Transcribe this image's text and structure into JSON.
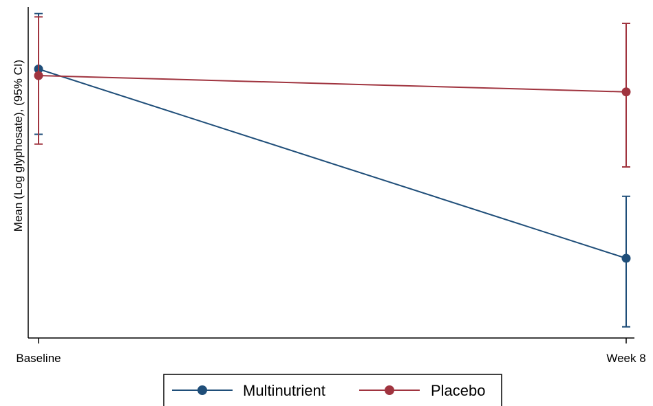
{
  "chart_data": {
    "type": "line",
    "title": "",
    "xlabel": "",
    "ylabel": "Mean (Log glyphosate), (95% CI)",
    "categories": [
      "Baseline",
      "Week 8"
    ],
    "ylim": [
      0,
      1
    ],
    "grid": false,
    "legend_position": "bottom",
    "series": [
      {
        "name": "Multinutrient",
        "color": "#1f4e79",
        "values": [
          0.82,
          0.24
        ],
        "ci_lower": [
          0.62,
          0.03
        ],
        "ci_upper": [
          0.99,
          0.43
        ]
      },
      {
        "name": "Placebo",
        "color": "#a0343f",
        "values": [
          0.8,
          0.75
        ],
        "ci_lower": [
          0.59,
          0.52
        ],
        "ci_upper": [
          0.98,
          0.96
        ]
      }
    ]
  }
}
